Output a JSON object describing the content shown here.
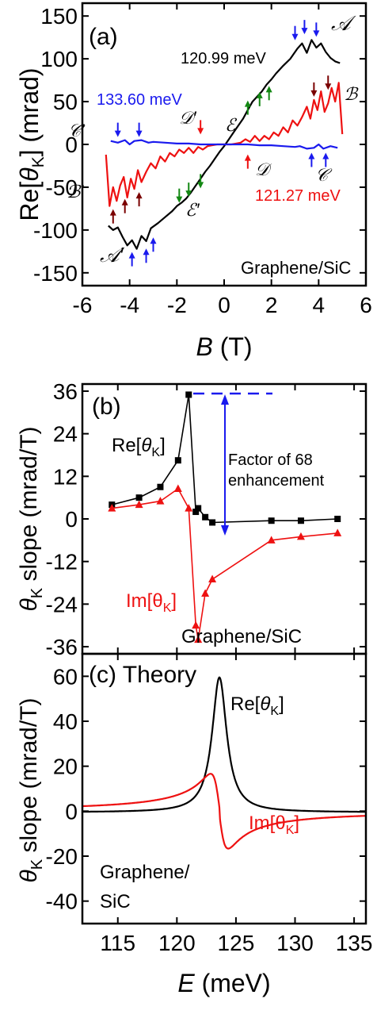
{
  "chart_data": [
    {
      "type": "line",
      "panel_label": "(a)",
      "ylabel_pre": "Re[",
      "ylabel_sym": "θ",
      "ylabel_sub": "K",
      "ylabel_post": "] (mrad)",
      "xlabel_sym": "B",
      "xlabel_post": " (T)",
      "xlim": [
        -6,
        6
      ],
      "ylim": [
        -165,
        165
      ],
      "xticks": [
        "-6",
        "-4",
        "-2",
        "0",
        "2",
        "4",
        "6"
      ],
      "yticks": [
        "-150",
        "-100",
        "-50",
        "0",
        "50",
        "100",
        "150"
      ],
      "annotation_sample": "Graphene/SiC",
      "series": [
        {
          "name": "120.99 meV",
          "color": "#000000",
          "x": [
            -4.9,
            -4.7,
            -4.5,
            -4.3,
            -4.1,
            -3.9,
            -3.7,
            -3.5,
            -3.3,
            -3.1,
            -2.8,
            -2.5,
            -2.2,
            -2.0,
            -1.8,
            -1.6,
            -1.4,
            -1.2,
            -1.0,
            -0.8,
            -0.6,
            -0.4,
            -0.2,
            0.0,
            0.2,
            0.4,
            0.6,
            0.8,
            1.0,
            1.2,
            1.4,
            1.6,
            1.8,
            2.0,
            2.2,
            2.5,
            2.8,
            3.1,
            3.3,
            3.5,
            3.7,
            3.9,
            4.1,
            4.3,
            4.5,
            4.7,
            4.9
          ],
          "y": [
            -95,
            -100,
            -97,
            -108,
            -118,
            -112,
            -122,
            -107,
            -113,
            -98,
            -92,
            -85,
            -78,
            -72,
            -68,
            -63,
            -56,
            -48,
            -40,
            -32,
            -25,
            -17,
            -9,
            -2,
            6,
            14,
            22,
            30,
            40,
            50,
            56,
            62,
            70,
            76,
            83,
            92,
            100,
            112,
            118,
            107,
            122,
            113,
            118,
            108,
            101,
            97,
            95
          ]
        },
        {
          "name": "121.27 meV",
          "color": "#ee1111",
          "x": [
            -5.0,
            -4.85,
            -4.7,
            -4.55,
            -4.4,
            -4.25,
            -4.1,
            -3.95,
            -3.8,
            -3.65,
            -3.5,
            -3.3,
            -3.1,
            -2.9,
            -2.7,
            -2.5,
            -2.3,
            -2.1,
            -1.9,
            -1.7,
            -1.5,
            -1.3,
            -1.1,
            -0.9,
            -0.7,
            -0.5,
            -0.3,
            0.0,
            0.3,
            0.5,
            0.7,
            0.9,
            1.1,
            1.3,
            1.5,
            1.7,
            1.9,
            2.1,
            2.3,
            2.5,
            2.7,
            2.9,
            3.1,
            3.3,
            3.5,
            3.65,
            3.8,
            3.95,
            4.1,
            4.25,
            4.4,
            4.55,
            4.7,
            4.85,
            5.0
          ],
          "y": [
            -12,
            -72,
            -50,
            -66,
            -48,
            -38,
            -62,
            -40,
            -52,
            -30,
            -44,
            -32,
            -22,
            -28,
            -14,
            -20,
            -10,
            -14,
            -6,
            -10,
            -4,
            -10,
            -3,
            -6,
            -2,
            -1,
            0,
            0,
            0,
            1,
            2,
            6,
            3,
            10,
            4,
            10,
            6,
            14,
            10,
            20,
            14,
            28,
            22,
            32,
            44,
            30,
            52,
            40,
            62,
            38,
            48,
            66,
            50,
            72,
            12
          ]
        },
        {
          "name": "133.60 meV",
          "color": "#1a1aee",
          "x": [
            -4.8,
            -4.5,
            -4.2,
            -4.0,
            -3.8,
            -3.5,
            -3.2,
            -3.0,
            -2.5,
            -2.0,
            -1.5,
            -1.0,
            -0.5,
            0.0,
            0.5,
            1.0,
            1.5,
            2.0,
            2.5,
            3.0,
            3.2,
            3.5,
            3.8,
            4.0,
            4.2,
            4.5,
            4.8
          ],
          "y": [
            4,
            2,
            5,
            0,
            4,
            5,
            2,
            3,
            2,
            1,
            1,
            0,
            0,
            0,
            0,
            0,
            -1,
            -1,
            -2,
            -3,
            -2,
            -5,
            -4,
            0,
            -5,
            -2,
            -4
          ]
        }
      ],
      "markers": {
        "A": "𝒜",
        "A_prime": "𝒜′",
        "B": "ℬ",
        "B_prime": "ℬ′",
        "C": "𝒞",
        "C_prime": "𝒞′",
        "D": "𝒟",
        "D_prime": "𝒟′",
        "E": "ℰ",
        "E_prime": "ℰ′"
      }
    },
    {
      "type": "line",
      "panel_label": "(b)",
      "ylabel_sym": "θ",
      "ylabel_sub": "K",
      "ylabel_post": " slope (mrad/T)",
      "xlim": [
        112,
        136
      ],
      "ylim": [
        -38,
        38
      ],
      "yticks": [
        "-36",
        "-24",
        "-12",
        "0",
        "12",
        "24",
        "36"
      ],
      "annotation_sample": "Graphene/SiC",
      "annotation_factor_1": "Factor of 68",
      "annotation_factor_2": "enhancement",
      "series": [
        {
          "name_pre": "Re[",
          "name_sym": "θ",
          "name_sub": "K",
          "name_post": "]",
          "color": "#000000",
          "marker": "square",
          "x": [
            114.5,
            116.8,
            118.6,
            120.1,
            121.0,
            121.6,
            121.8,
            122.4,
            123.0,
            128.0,
            130.5,
            133.6
          ],
          "y": [
            4,
            6,
            9,
            16.5,
            35,
            2,
            3,
            0.5,
            -1,
            -0.5,
            -0.5,
            0
          ]
        },
        {
          "name_pre": "Im[",
          "name_sym": "θ",
          "name_sub": "K",
          "name_post": "]",
          "color": "#ee1111",
          "marker": "triangle",
          "x": [
            114.5,
            116.8,
            118.6,
            120.1,
            121.0,
            121.6,
            121.8,
            122.4,
            123.0,
            128.0,
            130.5,
            133.6
          ],
          "y": [
            3,
            4,
            5,
            8.5,
            3,
            -30,
            -34,
            -21,
            -17,
            -6,
            -5,
            -4
          ]
        }
      ]
    },
    {
      "type": "line",
      "panel_label": "(c) Theory",
      "ylabel_sym": "θ",
      "ylabel_sub": "K",
      "ylabel_post": " slope (mrad/T)",
      "xlabel_sym": "E",
      "xlabel_post": " (meV)",
      "xlim": [
        112,
        136
      ],
      "ylim": [
        -50,
        70
      ],
      "xticks": [
        "115",
        "120",
        "125",
        "130",
        "135"
      ],
      "yticks": [
        "-40",
        "-20",
        "0",
        "20",
        "40",
        "60"
      ],
      "annotation_sample_1": "Graphene/",
      "annotation_sample_2": "SiC",
      "resonance_center": 123.6,
      "resonance_width": 0.75,
      "resonance_amplitude": 60,
      "series": [
        {
          "name_pre": "Re[",
          "name_sym": "θ",
          "name_sub": "K",
          "name_post": "]",
          "color": "#000000"
        },
        {
          "name_pre": "Im[",
          "name_sym": "θ",
          "name_sub": "K",
          "name_post": "]",
          "color": "#ee1111"
        }
      ]
    }
  ]
}
